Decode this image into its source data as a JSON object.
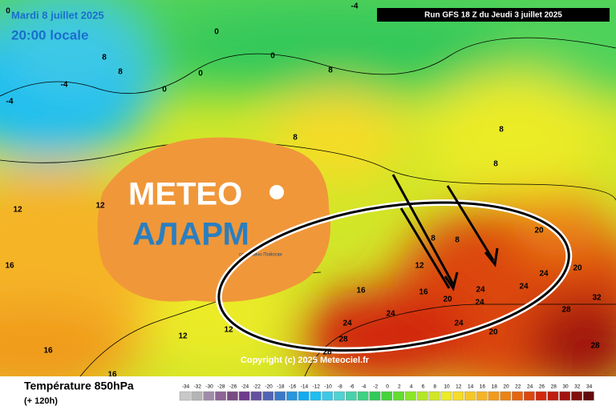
{
  "header": {
    "date": "Mardi 8 juillet 2025",
    "time": "20:00 locale",
    "run": "Run GFS 18 Z du Jeudi 3 juillet 2025",
    "copyright": "Copyright (c) 2025 Meteociel.fr"
  },
  "logo": {
    "line1": "METEO",
    "line2": "АЛАРМ",
    "tagline": "со Славчо Пойоски"
  },
  "footer": {
    "title": "Température 850hPa",
    "lead": "(+ 120h)"
  },
  "legend": {
    "ticks": [
      -34,
      -32,
      -30,
      -28,
      -26,
      -24,
      -22,
      -20,
      -18,
      -16,
      -14,
      -12,
      -10,
      -8,
      -6,
      -4,
      -2,
      0,
      2,
      4,
      6,
      8,
      10,
      12,
      14,
      16,
      18,
      20,
      22,
      24,
      26,
      28,
      30,
      32,
      34
    ],
    "colors": [
      "#c8c8c8",
      "#b4b4b4",
      "#a08caa",
      "#8c6496",
      "#784b82",
      "#6e3c8c",
      "#6450a0",
      "#5064b4",
      "#3c78c8",
      "#2896dc",
      "#14aaf0",
      "#1ebef0",
      "#3cc8e6",
      "#50d2d2",
      "#46d2aa",
      "#3cd282",
      "#32c85a",
      "#46d23c",
      "#64dc32",
      "#8ce628",
      "#b4e628",
      "#d2e628",
      "#ebeb28",
      "#f5dc28",
      "#f5c828",
      "#f5b428",
      "#f09b1e",
      "#eb8214",
      "#e6640f",
      "#dc460f",
      "#d2280f",
      "#be1e0f",
      "#a0140f",
      "#820f0a",
      "#640a0a"
    ]
  },
  "contour_labels": [
    0,
    0,
    0,
    0,
    0,
    -4,
    -4,
    -4,
    8,
    8,
    8,
    8,
    8,
    8,
    8,
    8,
    12,
    12,
    12,
    12,
    12,
    16,
    16,
    16,
    16,
    16,
    20,
    20,
    20,
    20,
    24,
    24,
    24,
    24,
    24,
    24,
    24,
    28,
    28,
    28,
    28,
    32
  ]
}
